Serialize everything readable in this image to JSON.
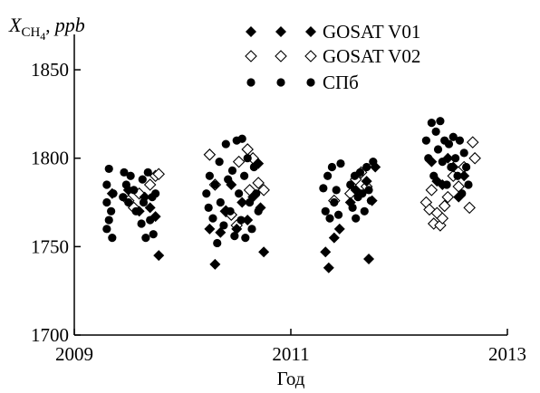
{
  "chart_data": {
    "type": "scatter",
    "xlabel": "Год",
    "ylabel": {
      "main": "X",
      "sub": "CH",
      "sub_index": "4",
      "suffix": ", ",
      "unit": "ppb"
    },
    "xlim": [
      2009,
      2013
    ],
    "ylim": [
      1700,
      1870
    ],
    "x_ticks": [
      "2009",
      "2011",
      "2013"
    ],
    "y_ticks": [
      "1700",
      "1750",
      "1800",
      "1850"
    ],
    "legend_position": "top-center",
    "series": [
      {
        "name": "GOSAT V01",
        "marker": "diamond-filled",
        "color": "#000000",
        "points": [
          [
            2009.35,
            1780
          ],
          [
            2009.5,
            1782
          ],
          [
            2009.6,
            1770
          ],
          [
            2009.65,
            1778
          ],
          [
            2009.7,
            1772
          ],
          [
            2009.75,
            1767
          ],
          [
            2009.78,
            1745
          ],
          [
            2010.25,
            1760
          ],
          [
            2010.3,
            1740
          ],
          [
            2010.35,
            1758
          ],
          [
            2010.4,
            1770
          ],
          [
            2010.45,
            1785
          ],
          [
            2010.5,
            1760
          ],
          [
            2010.55,
            1775
          ],
          [
            2010.6,
            1765
          ],
          [
            2010.65,
            1778
          ],
          [
            2010.7,
            1797
          ],
          [
            2010.72,
            1772
          ],
          [
            2010.75,
            1747
          ],
          [
            2011.32,
            1747
          ],
          [
            2011.35,
            1738
          ],
          [
            2011.4,
            1755
          ],
          [
            2011.45,
            1760
          ],
          [
            2011.55,
            1775
          ],
          [
            2011.6,
            1782
          ],
          [
            2011.7,
            1787
          ],
          [
            2011.72,
            1743
          ],
          [
            2011.75,
            1776
          ],
          [
            2011.78,
            1795
          ],
          [
            2012.3,
            1798
          ],
          [
            2012.35,
            1787
          ],
          [
            2012.4,
            1785
          ],
          [
            2012.45,
            1800
          ],
          [
            2012.5,
            1795
          ],
          [
            2012.55,
            1778
          ],
          [
            2012.6,
            1790
          ]
        ]
      },
      {
        "name": "GOSAT V02",
        "marker": "diamond-open",
        "color": "#000000",
        "points": [
          [
            2009.5,
            1776
          ],
          [
            2009.55,
            1772
          ],
          [
            2009.6,
            1780
          ],
          [
            2009.7,
            1785
          ],
          [
            2009.75,
            1790
          ],
          [
            2009.78,
            1791
          ],
          [
            2010.25,
            1802
          ],
          [
            2010.3,
            1785
          ],
          [
            2010.4,
            1770
          ],
          [
            2010.45,
            1768
          ],
          [
            2010.5,
            1762
          ],
          [
            2010.52,
            1798
          ],
          [
            2010.6,
            1805
          ],
          [
            2010.62,
            1782
          ],
          [
            2010.65,
            1800
          ],
          [
            2010.7,
            1786
          ],
          [
            2010.75,
            1782
          ],
          [
            2011.4,
            1776
          ],
          [
            2011.55,
            1780
          ],
          [
            2011.6,
            1788
          ],
          [
            2011.65,
            1792
          ],
          [
            2011.7,
            1784
          ],
          [
            2012.25,
            1775
          ],
          [
            2012.28,
            1771
          ],
          [
            2012.3,
            1782
          ],
          [
            2012.32,
            1763
          ],
          [
            2012.35,
            1769
          ],
          [
            2012.38,
            1762
          ],
          [
            2012.4,
            1766
          ],
          [
            2012.42,
            1773
          ],
          [
            2012.45,
            1778
          ],
          [
            2012.5,
            1790
          ],
          [
            2012.55,
            1784
          ],
          [
            2012.6,
            1795
          ],
          [
            2012.65,
            1772
          ],
          [
            2012.68,
            1809
          ],
          [
            2012.7,
            1800
          ]
        ]
      },
      {
        "name": "СПб",
        "marker": "circle-filled",
        "color": "#000000",
        "points": [
          [
            2009.3,
            1775
          ],
          [
            2009.3,
            1785
          ],
          [
            2009.3,
            1760
          ],
          [
            2009.32,
            1794
          ],
          [
            2009.32,
            1765
          ],
          [
            2009.34,
            1770
          ],
          [
            2009.35,
            1755
          ],
          [
            2009.36,
            1780
          ],
          [
            2009.45,
            1778
          ],
          [
            2009.46,
            1792
          ],
          [
            2009.48,
            1785
          ],
          [
            2009.5,
            1775
          ],
          [
            2009.52,
            1790
          ],
          [
            2009.55,
            1782
          ],
          [
            2009.57,
            1770
          ],
          [
            2009.62,
            1763
          ],
          [
            2009.63,
            1788
          ],
          [
            2009.64,
            1775
          ],
          [
            2009.66,
            1755
          ],
          [
            2009.68,
            1792
          ],
          [
            2009.7,
            1765
          ],
          [
            2009.72,
            1778
          ],
          [
            2009.73,
            1757
          ],
          [
            2009.75,
            1780
          ],
          [
            2010.22,
            1780
          ],
          [
            2010.24,
            1772
          ],
          [
            2010.25,
            1790
          ],
          [
            2010.28,
            1766
          ],
          [
            2010.3,
            1785
          ],
          [
            2010.32,
            1752
          ],
          [
            2010.34,
            1798
          ],
          [
            2010.35,
            1775
          ],
          [
            2010.38,
            1762
          ],
          [
            2010.4,
            1808
          ],
          [
            2010.42,
            1788
          ],
          [
            2010.44,
            1770
          ],
          [
            2010.46,
            1793
          ],
          [
            2010.48,
            1756
          ],
          [
            2010.5,
            1810
          ],
          [
            2010.52,
            1780
          ],
          [
            2010.54,
            1765
          ],
          [
            2010.55,
            1811
          ],
          [
            2010.57,
            1790
          ],
          [
            2010.58,
            1755
          ],
          [
            2010.6,
            1800
          ],
          [
            2010.62,
            1775
          ],
          [
            2010.64,
            1760
          ],
          [
            2010.66,
            1795
          ],
          [
            2010.68,
            1780
          ],
          [
            2010.7,
            1770
          ],
          [
            2011.3,
            1783
          ],
          [
            2011.32,
            1770
          ],
          [
            2011.34,
            1790
          ],
          [
            2011.36,
            1766
          ],
          [
            2011.38,
            1795
          ],
          [
            2011.4,
            1775
          ],
          [
            2011.42,
            1782
          ],
          [
            2011.44,
            1768
          ],
          [
            2011.46,
            1797
          ],
          [
            2011.55,
            1785
          ],
          [
            2011.57,
            1772
          ],
          [
            2011.59,
            1790
          ],
          [
            2011.6,
            1766
          ],
          [
            2011.62,
            1778
          ],
          [
            2011.64,
            1792
          ],
          [
            2011.66,
            1780
          ],
          [
            2011.68,
            1770
          ],
          [
            2011.7,
            1795
          ],
          [
            2011.72,
            1782
          ],
          [
            2011.74,
            1776
          ],
          [
            2011.76,
            1798
          ],
          [
            2012.25,
            1810
          ],
          [
            2012.27,
            1800
          ],
          [
            2012.3,
            1820
          ],
          [
            2012.32,
            1790
          ],
          [
            2012.34,
            1815
          ],
          [
            2012.36,
            1805
          ],
          [
            2012.38,
            1821
          ],
          [
            2012.4,
            1798
          ],
          [
            2012.42,
            1810
          ],
          [
            2012.44,
            1785
          ],
          [
            2012.46,
            1808
          ],
          [
            2012.48,
            1795
          ],
          [
            2012.5,
            1812
          ],
          [
            2012.52,
            1800
          ],
          [
            2012.54,
            1790
          ],
          [
            2012.56,
            1810
          ],
          [
            2012.58,
            1780
          ],
          [
            2012.6,
            1803
          ],
          [
            2012.62,
            1795
          ],
          [
            2012.64,
            1785
          ]
        ]
      }
    ]
  }
}
